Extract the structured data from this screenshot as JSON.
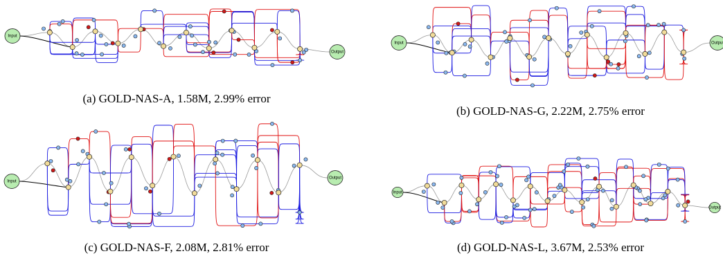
{
  "figures": [
    {
      "caption": "(a) GOLD-NAS-A, 1.58M, 2.99% error",
      "input": "Input",
      "output": "Output"
    },
    {
      "caption": "(b) GOLD-NAS-G, 2.22M, 2.75% error",
      "input": "Input",
      "output": "Output"
    },
    {
      "caption": "(c) GOLD-NAS-F, 2.08M, 2.81% error",
      "input": "Input",
      "output": "Output"
    },
    {
      "caption": "(d) GOLD-NAS-L, 3.67M, 2.53% error",
      "input": "Input",
      "output": "Output"
    }
  ]
}
